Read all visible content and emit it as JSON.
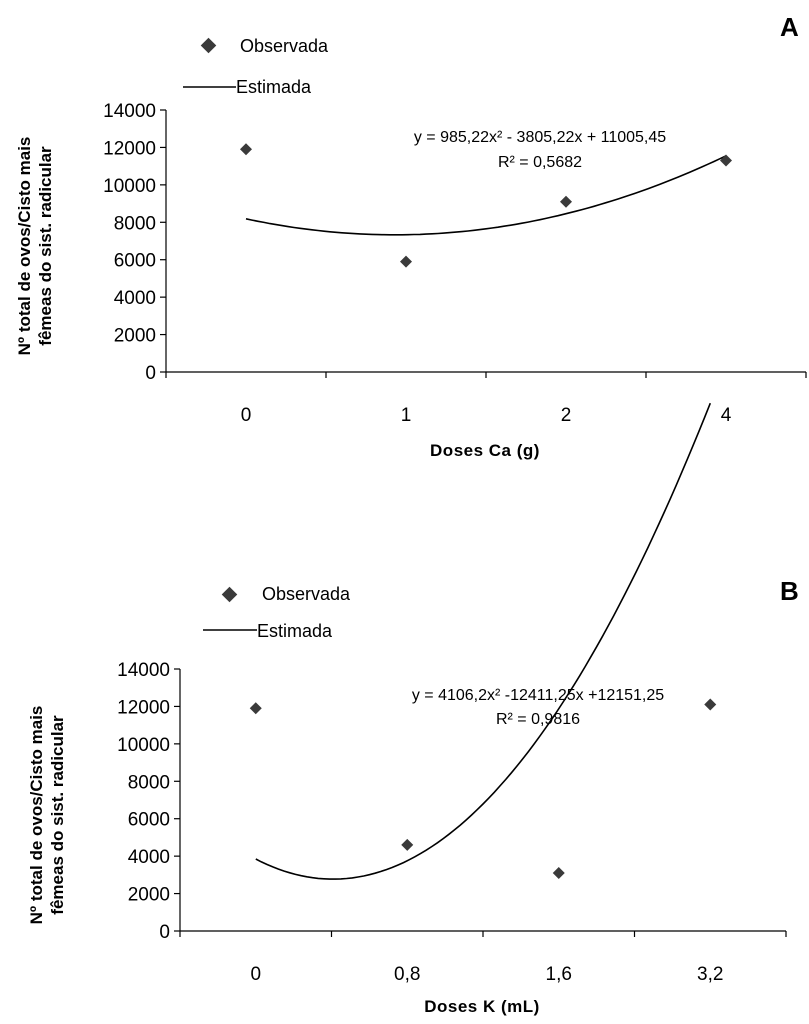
{
  "chart_data": [
    {
      "panel_label": "A",
      "type": "scatter",
      "categories": [
        "0",
        "1",
        "2",
        "4"
      ],
      "series": [
        {
          "name": "Observada",
          "marker": "diamond",
          "values": [
            11900,
            5900,
            9100,
            11300
          ]
        },
        {
          "name": "Estimada",
          "style": "line",
          "coefficients": {
            "a": 985.22,
            "b": -3805.22,
            "c": 11005.45
          }
        }
      ],
      "equation": "y = 985,22x² - 3805,22x + 11005,45",
      "r2": "R² = 0,5682",
      "xlabel": "Doses Ca (g)",
      "ylabel": [
        "Nº total de ovos/Cisto mais",
        "fêmeas do sist. radicular"
      ],
      "yticks": [
        "0",
        "2000",
        "4000",
        "6000",
        "8000",
        "10000",
        "12000",
        "14000"
      ],
      "ylim": [
        0,
        14000
      ],
      "legend_position": "top-left",
      "grid": false
    },
    {
      "panel_label": "B",
      "type": "scatter",
      "categories": [
        "0",
        "0,8",
        "1,6",
        "3,2"
      ],
      "series": [
        {
          "name": "Observada",
          "marker": "diamond",
          "values": [
            11900,
            4600,
            3100,
            12100
          ]
        },
        {
          "name": "Estimada",
          "style": "line",
          "coefficients": {
            "a": 4106.2,
            "b": -12411.25,
            "c": 12151.25
          }
        }
      ],
      "equation": "y = 4106,2x² -12411,25x +12151,25",
      "r2": "R² = 0,9816",
      "xlabel": "Doses K (mL)",
      "ylabel": [
        "Nº total de ovos/Cisto mais",
        "fêmeas do sist. radicular"
      ],
      "yticks": [
        "0",
        "2000",
        "4000",
        "6000",
        "8000",
        "10000",
        "12000",
        "14000"
      ],
      "ylim": [
        0,
        14000
      ],
      "legend_position": "top-left",
      "grid": false
    }
  ],
  "colors": {
    "marker": "#3a3a3a",
    "line": "#000000",
    "axis": "#000000"
  }
}
